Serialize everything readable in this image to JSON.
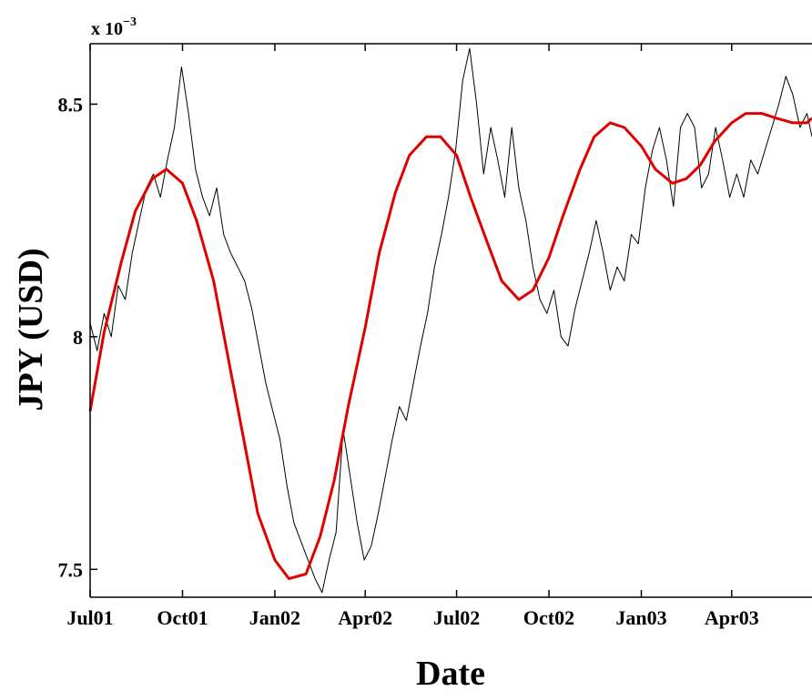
{
  "chart_data": {
    "type": "line",
    "xlabel": "Date",
    "ylabel": "JPY (USD)",
    "y_exponent_label": "x 10",
    "y_exponent_power": "−3",
    "x_start": "2001-07-01",
    "x_end": "2003-06-20",
    "ylim": [
      0.00744,
      0.00863
    ],
    "x_ticks": [
      {
        "date": "2001-07-01",
        "label": "Jul01"
      },
      {
        "date": "2001-10-01",
        "label": "Oct01"
      },
      {
        "date": "2002-01-01",
        "label": "Jan02"
      },
      {
        "date": "2002-04-01",
        "label": "Apr02"
      },
      {
        "date": "2002-07-01",
        "label": "Jul02"
      },
      {
        "date": "2002-10-01",
        "label": "Oct02"
      },
      {
        "date": "2003-01-01",
        "label": "Jan03"
      },
      {
        "date": "2003-04-01",
        "label": "Apr03"
      }
    ],
    "y_ticks": [
      {
        "value": 0.0075,
        "label": "7.5"
      },
      {
        "value": 0.008,
        "label": "8"
      },
      {
        "value": 0.0085,
        "label": "8.5"
      }
    ],
    "grid": false,
    "legend": "none",
    "series": [
      {
        "style": "raw",
        "color": "#000000",
        "x": [
          "2001-07-01",
          "2001-07-08",
          "2001-07-15",
          "2001-07-22",
          "2001-07-29",
          "2001-08-05",
          "2001-08-12",
          "2001-08-19",
          "2001-08-26",
          "2001-09-02",
          "2001-09-09",
          "2001-09-16",
          "2001-09-23",
          "2001-09-30",
          "2001-10-07",
          "2001-10-14",
          "2001-10-21",
          "2001-10-28",
          "2001-11-04",
          "2001-11-11",
          "2001-11-18",
          "2001-11-25",
          "2001-12-02",
          "2001-12-09",
          "2001-12-16",
          "2001-12-23",
          "2001-12-30",
          "2002-01-06",
          "2002-01-13",
          "2002-01-20",
          "2002-01-27",
          "2002-02-03",
          "2002-02-10",
          "2002-02-17",
          "2002-02-24",
          "2002-03-03",
          "2002-03-10",
          "2002-03-17",
          "2002-03-24",
          "2002-03-31",
          "2002-04-07",
          "2002-04-14",
          "2002-04-21",
          "2002-04-28",
          "2002-05-05",
          "2002-05-12",
          "2002-05-19",
          "2002-05-26",
          "2002-06-02",
          "2002-06-09",
          "2002-06-16",
          "2002-06-23",
          "2002-06-30",
          "2002-07-07",
          "2002-07-14",
          "2002-07-21",
          "2002-07-28",
          "2002-08-04",
          "2002-08-11",
          "2002-08-18",
          "2002-08-25",
          "2002-09-01",
          "2002-09-08",
          "2002-09-15",
          "2002-09-22",
          "2002-09-29",
          "2002-10-06",
          "2002-10-13",
          "2002-10-20",
          "2002-10-27",
          "2002-11-03",
          "2002-11-10",
          "2002-11-17",
          "2002-11-24",
          "2002-12-01",
          "2002-12-08",
          "2002-12-15",
          "2002-12-22",
          "2002-12-29",
          "2003-01-05",
          "2003-01-12",
          "2003-01-19",
          "2003-01-26",
          "2003-02-02",
          "2003-02-09",
          "2003-02-16",
          "2003-02-23",
          "2003-03-02",
          "2003-03-09",
          "2003-03-16",
          "2003-03-23",
          "2003-03-30",
          "2003-04-06",
          "2003-04-13",
          "2003-04-20",
          "2003-04-27",
          "2003-05-04",
          "2003-05-11",
          "2003-05-18",
          "2003-05-25",
          "2003-06-01",
          "2003-06-08",
          "2003-06-15",
          "2003-06-20"
        ],
        "y": [
          0.00803,
          0.00797,
          0.00805,
          0.008,
          0.00811,
          0.00808,
          0.00818,
          0.00825,
          0.00832,
          0.00835,
          0.0083,
          0.00838,
          0.00845,
          0.00858,
          0.00848,
          0.00836,
          0.0083,
          0.00826,
          0.00832,
          0.00822,
          0.00818,
          0.00815,
          0.00812,
          0.00806,
          0.00798,
          0.0079,
          0.00784,
          0.00778,
          0.00768,
          0.0076,
          0.00756,
          0.00752,
          0.00748,
          0.00745,
          0.00752,
          0.00758,
          0.0078,
          0.0077,
          0.0076,
          0.00752,
          0.00755,
          0.00762,
          0.0077,
          0.00778,
          0.00785,
          0.00782,
          0.0079,
          0.00798,
          0.00805,
          0.00815,
          0.00822,
          0.0083,
          0.0084,
          0.00855,
          0.00862,
          0.0085,
          0.00835,
          0.00845,
          0.00838,
          0.0083,
          0.00845,
          0.00832,
          0.00825,
          0.00815,
          0.00808,
          0.00805,
          0.0081,
          0.008,
          0.00798,
          0.00806,
          0.00812,
          0.00818,
          0.00825,
          0.00818,
          0.0081,
          0.00815,
          0.00812,
          0.00822,
          0.0082,
          0.00832,
          0.0084,
          0.00845,
          0.00838,
          0.00828,
          0.00845,
          0.00848,
          0.00845,
          0.00832,
          0.00835,
          0.00845,
          0.00838,
          0.0083,
          0.00835,
          0.0083,
          0.00838,
          0.00835,
          0.0084,
          0.00845,
          0.0085,
          0.00856,
          0.00852,
          0.00845,
          0.00848,
          0.00843
        ]
      },
      {
        "style": "smooth",
        "color": "#e00000",
        "x": [
          "2001-07-01",
          "2001-07-15",
          "2001-08-01",
          "2001-08-15",
          "2001-09-01",
          "2001-09-15",
          "2001-10-01",
          "2001-10-15",
          "2001-11-01",
          "2001-11-15",
          "2001-12-01",
          "2001-12-15",
          "2002-01-01",
          "2002-01-15",
          "2002-02-01",
          "2002-02-15",
          "2002-03-01",
          "2002-03-15",
          "2002-04-01",
          "2002-04-15",
          "2002-05-01",
          "2002-05-15",
          "2002-06-01",
          "2002-06-15",
          "2002-07-01",
          "2002-07-15",
          "2002-08-01",
          "2002-08-15",
          "2002-09-01",
          "2002-09-15",
          "2002-10-01",
          "2002-10-15",
          "2002-11-01",
          "2002-11-15",
          "2002-12-01",
          "2002-12-15",
          "2003-01-01",
          "2003-01-15",
          "2003-02-01",
          "2003-02-15",
          "2003-03-01",
          "2003-03-15",
          "2003-04-01",
          "2003-04-15",
          "2003-05-01",
          "2003-05-15",
          "2003-06-01",
          "2003-06-15",
          "2003-06-20"
        ],
        "y": [
          0.00784,
          0.00801,
          0.00816,
          0.00827,
          0.00834,
          0.00836,
          0.00833,
          0.00825,
          0.00812,
          0.00796,
          0.00778,
          0.00762,
          0.00752,
          0.00748,
          0.00749,
          0.00757,
          0.00769,
          0.00785,
          0.00802,
          0.00818,
          0.00831,
          0.00839,
          0.00843,
          0.00843,
          0.00839,
          0.0083,
          0.0082,
          0.00812,
          0.00808,
          0.0081,
          0.00817,
          0.00826,
          0.00836,
          0.00843,
          0.00846,
          0.00845,
          0.00841,
          0.00836,
          0.00833,
          0.00834,
          0.00837,
          0.00842,
          0.00846,
          0.00848,
          0.00848,
          0.00847,
          0.00846,
          0.00846,
          0.00847
        ]
      }
    ]
  }
}
